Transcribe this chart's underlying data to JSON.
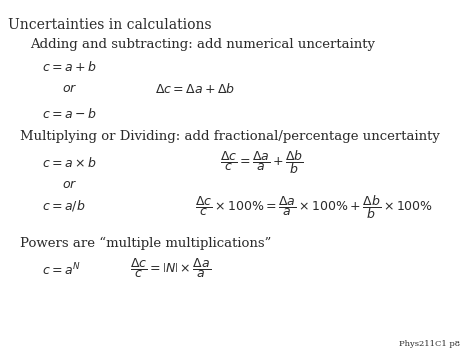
{
  "background_color": "#ffffff",
  "title": "Uncertainties in calculations",
  "subtitle1": "Adding and subtracting: add numerical uncertainty",
  "subtitle2": "Multiplying or Dividing: add fractional/percentage uncertainty",
  "subtitle3": "Powers are “multiple multiplications”",
  "footer": "Phys211C1 p8",
  "text_color": "#2a2a2a",
  "title_fontsize": 10,
  "subtitle_fontsize": 9.5,
  "formula_fontsize": 9,
  "footer_fontsize": 6
}
